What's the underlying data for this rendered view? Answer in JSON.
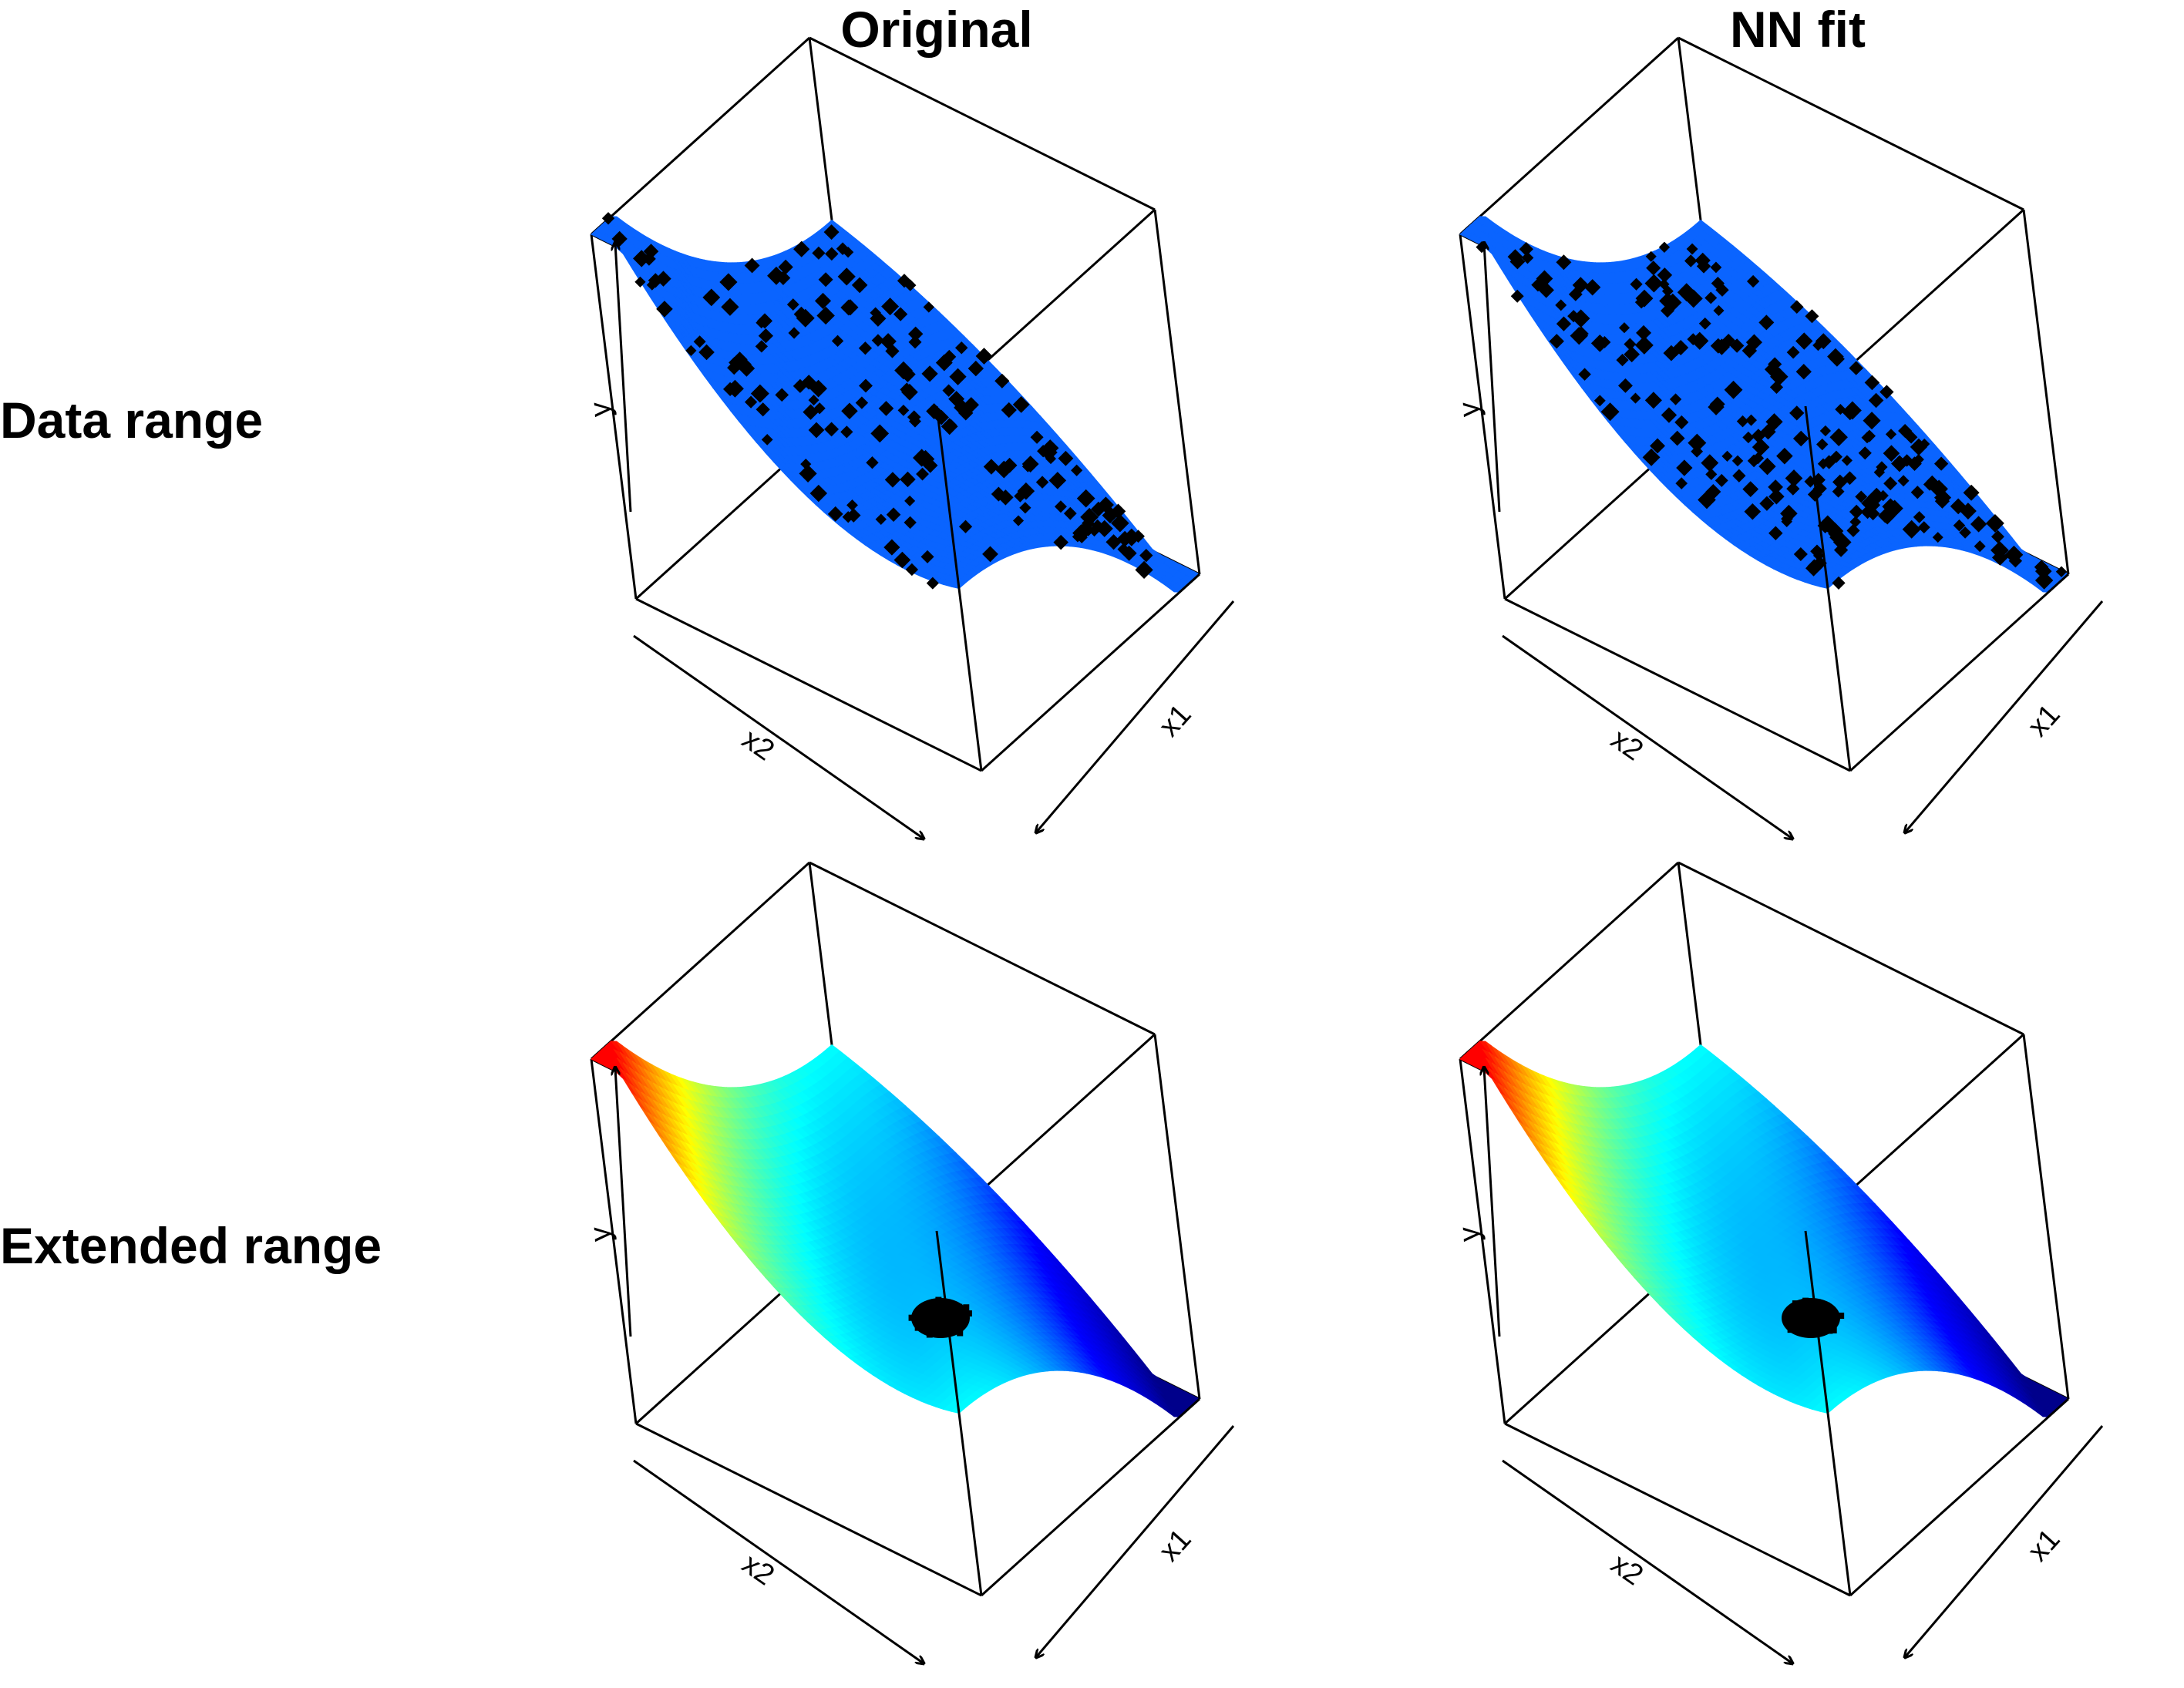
{
  "col_titles": [
    "Original",
    "NN fit"
  ],
  "row_titles": [
    "Data range",
    "Extended range"
  ],
  "chart_data": [
    {
      "type": "surface3d",
      "title": "Original",
      "row": "Data range",
      "axis_labels": {
        "x": "x1",
        "y": "x2",
        "z": "y"
      },
      "surface_color": "#0a64ff",
      "colored_by_height": false,
      "has_points": true,
      "point_color": "#000000",
      "point_symbol": "filled-diamond",
      "grid": false
    },
    {
      "type": "surface3d",
      "title": "NN fit",
      "row": "Data range",
      "axis_labels": {
        "x": "x1",
        "y": "x2",
        "z": "y"
      },
      "surface_color": "#0a64ff",
      "colored_by_height": false,
      "has_points": true,
      "point_color": "#000000",
      "point_symbol": "filled-diamond",
      "grid": false
    },
    {
      "type": "surface3d",
      "title": "Original",
      "row": "Extended range",
      "axis_labels": {
        "x": "x1",
        "y": "x2",
        "z": "y"
      },
      "colored_by_height": true,
      "colormap": [
        "#00008b",
        "#0000ff",
        "#00ffff",
        "#ffff00",
        "#ff0000"
      ],
      "has_points": true,
      "point_color": "#000000",
      "grid": false
    },
    {
      "type": "surface3d",
      "title": "NN fit",
      "row": "Extended range",
      "axis_labels": {
        "x": "x1",
        "y": "x2",
        "z": "y"
      },
      "colored_by_height": true,
      "colormap": [
        "#00008b",
        "#0000ff",
        "#00ffff",
        "#ffff00",
        "#ff0000"
      ],
      "has_points": true,
      "point_color": "#000000",
      "grid": false
    }
  ]
}
